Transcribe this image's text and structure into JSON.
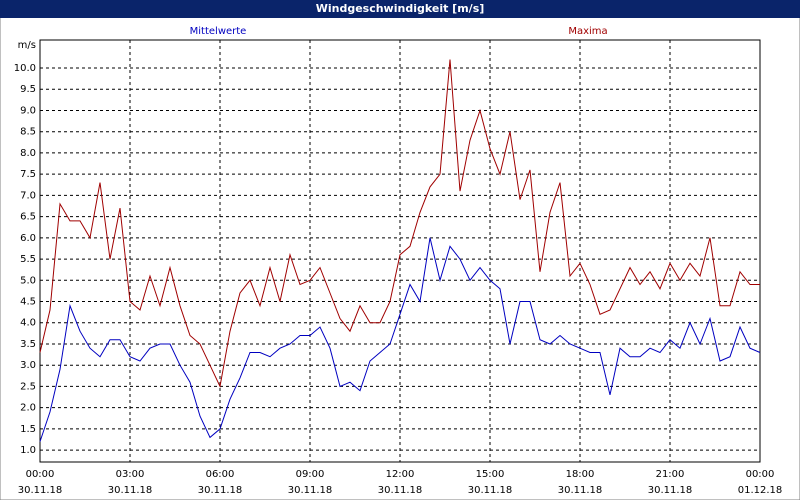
{
  "chart_data": {
    "type": "line",
    "title": "Windgeschwindigkeit [m/s]",
    "y_unit_label": "m/s",
    "xlim": [
      0,
      1440
    ],
    "ylim": [
      0.72,
      10.66
    ],
    "yticks": [
      {
        "value": 1,
        "label": "1.0"
      },
      {
        "value": 1.5,
        "label": "1.5"
      },
      {
        "value": 2,
        "label": "2.0"
      },
      {
        "value": 2.5,
        "label": "2.5"
      },
      {
        "value": 3,
        "label": "3.0"
      },
      {
        "value": 3.5,
        "label": "3.5"
      },
      {
        "value": 4,
        "label": "4.0"
      },
      {
        "value": 4.5,
        "label": "4.5"
      },
      {
        "value": 5,
        "label": "5.0"
      },
      {
        "value": 5.5,
        "label": "5.5"
      },
      {
        "value": 6,
        "label": "6.0"
      },
      {
        "value": 6.5,
        "label": "6.5"
      },
      {
        "value": 7,
        "label": "7.0"
      },
      {
        "value": 7.5,
        "label": "7.5"
      },
      {
        "value": 8,
        "label": "8.0"
      },
      {
        "value": 8.5,
        "label": "8.5"
      },
      {
        "value": 9,
        "label": "9.0"
      },
      {
        "value": 9.5,
        "label": "9.5"
      },
      {
        "value": 10,
        "label": "10.0"
      }
    ],
    "xticks": [
      {
        "value": 0,
        "label": "00:00"
      },
      {
        "value": 180,
        "label": "03:00"
      },
      {
        "value": 360,
        "label": "06:00"
      },
      {
        "value": 540,
        "label": "09:00"
      },
      {
        "value": 720,
        "label": "12:00"
      },
      {
        "value": 900,
        "label": "15:00"
      },
      {
        "value": 1080,
        "label": "18:00"
      },
      {
        "value": 1260,
        "label": "21:00"
      },
      {
        "value": 1440,
        "label": "00:00"
      }
    ],
    "xtick_dates": [
      "30.11.18",
      "30.11.18",
      "30.11.18",
      "30.11.18",
      "30.11.18",
      "30.11.18",
      "30.11.18",
      "30.11.18",
      "01.12.18"
    ],
    "grid": true,
    "x": [
      0,
      20,
      40,
      60,
      80,
      100,
      120,
      140,
      160,
      180,
      200,
      220,
      240,
      260,
      280,
      300,
      320,
      340,
      360,
      380,
      400,
      420,
      440,
      460,
      480,
      500,
      520,
      540,
      560,
      580,
      600,
      620,
      640,
      660,
      680,
      700,
      720,
      740,
      760,
      780,
      800,
      820,
      840,
      860,
      880,
      900,
      920,
      940,
      960,
      980,
      1000,
      1020,
      1040,
      1060,
      1080,
      1100,
      1120,
      1140,
      1160,
      1180,
      1200,
      1220,
      1240,
      1260,
      1280,
      1300,
      1320,
      1340,
      1360,
      1380,
      1400,
      1420,
      1440
    ],
    "series": [
      {
        "name": "Mittelwerte",
        "color": "#0000c0",
        "legend_x": 218,
        "values": [
          1.2,
          1.9,
          2.9,
          4.4,
          3.8,
          3.4,
          3.2,
          3.6,
          3.6,
          3.2,
          3.1,
          3.4,
          3.5,
          3.5,
          3.0,
          2.6,
          1.8,
          1.3,
          1.5,
          2.2,
          2.7,
          3.3,
          3.3,
          3.2,
          3.4,
          3.5,
          3.7,
          3.7,
          3.9,
          3.4,
          2.5,
          2.6,
          2.4,
          3.1,
          3.3,
          3.5,
          4.2,
          4.9,
          4.5,
          6.0,
          5.0,
          5.8,
          5.5,
          5.0,
          5.3,
          5.0,
          4.8,
          3.5,
          4.5,
          4.5,
          3.6,
          3.5,
          3.7,
          3.5,
          3.4,
          3.3,
          3.3,
          2.3,
          3.4,
          3.2,
          3.2,
          3.4,
          3.3,
          3.6,
          3.4,
          4.0,
          3.5,
          4.1,
          3.1,
          3.2,
          3.9,
          3.4,
          3.3
        ]
      },
      {
        "name": "Maxima",
        "color": "#a00000",
        "legend_x": 588,
        "values": [
          3.3,
          4.3,
          6.8,
          6.4,
          6.4,
          6.0,
          7.3,
          5.5,
          6.7,
          4.5,
          4.3,
          5.1,
          4.4,
          5.3,
          4.4,
          3.7,
          3.5,
          3.0,
          2.5,
          3.8,
          4.7,
          5.0,
          4.4,
          5.3,
          4.5,
          5.6,
          4.9,
          5.0,
          5.3,
          4.7,
          4.1,
          3.8,
          4.4,
          4.0,
          4.0,
          4.5,
          5.6,
          5.8,
          6.6,
          7.2,
          7.5,
          10.2,
          7.1,
          8.3,
          9.0,
          8.1,
          7.5,
          8.5,
          6.9,
          7.6,
          5.2,
          6.6,
          7.3,
          5.1,
          5.4,
          4.9,
          4.2,
          4.3,
          4.8,
          5.3,
          4.9,
          5.2,
          4.8,
          5.4,
          5.0,
          5.4,
          5.1,
          6.0,
          4.4,
          4.4,
          5.2,
          4.9,
          4.9
        ]
      }
    ]
  }
}
